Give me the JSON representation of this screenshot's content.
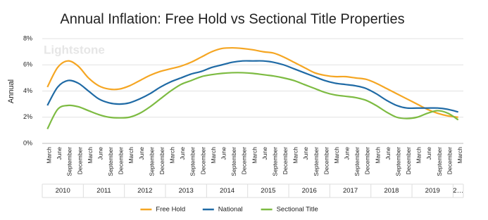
{
  "chart_data": {
    "type": "line",
    "title": "Annual Inflation: Free Hold vs Sectional Title Properties",
    "ylabel": "Annual",
    "watermark": "Lightstone",
    "categories": [
      "March",
      "June",
      "September",
      "December",
      "March",
      "June",
      "September",
      "December",
      "March",
      "June",
      "September",
      "December",
      "March",
      "June",
      "September",
      "December",
      "March",
      "June",
      "September",
      "December",
      "March",
      "June",
      "September",
      "December",
      "March",
      "June",
      "September",
      "December",
      "March",
      "June",
      "September",
      "December",
      "March",
      "June",
      "September",
      "December",
      "March",
      "June",
      "September",
      "December",
      "March"
    ],
    "x_groups": [
      "2010",
      "2011",
      "2012",
      "2013",
      "2014",
      "2015",
      "2016",
      "2017",
      "2018",
      "2019",
      "2…"
    ],
    "ylim": [
      0,
      8
    ],
    "yticks": [
      {
        "value": 0,
        "label": "0%"
      },
      {
        "value": 2,
        "label": "2%"
      },
      {
        "value": 4,
        "label": "4%"
      },
      {
        "value": 6,
        "label": "6%"
      },
      {
        "value": 8,
        "label": "8%"
      }
    ],
    "grid": true,
    "legend": "bottom",
    "series": [
      {
        "name": "Free Hold",
        "color": "#f5a623",
        "values": [
          4.3,
          5.8,
          6.3,
          5.9,
          5.0,
          4.4,
          4.15,
          4.15,
          4.4,
          4.8,
          5.2,
          5.5,
          5.7,
          5.9,
          6.2,
          6.6,
          7.0,
          7.25,
          7.3,
          7.25,
          7.15,
          7.0,
          6.9,
          6.6,
          6.2,
          5.8,
          5.4,
          5.2,
          5.1,
          5.1,
          5.0,
          4.9,
          4.6,
          4.2,
          3.8,
          3.4,
          3.0,
          2.6,
          2.3,
          2.1,
          2.0
        ]
      },
      {
        "name": "National",
        "color": "#1f6aa5",
        "values": [
          2.9,
          4.3,
          4.8,
          4.6,
          4.0,
          3.4,
          3.1,
          3.0,
          3.1,
          3.4,
          3.8,
          4.3,
          4.7,
          5.0,
          5.3,
          5.5,
          5.8,
          6.0,
          6.2,
          6.3,
          6.3,
          6.3,
          6.2,
          6.0,
          5.7,
          5.4,
          5.1,
          4.8,
          4.6,
          4.5,
          4.4,
          4.2,
          3.8,
          3.3,
          2.9,
          2.7,
          2.7,
          2.7,
          2.7,
          2.6,
          2.4
        ]
      },
      {
        "name": "Sectional Title",
        "color": "#7dbb42",
        "values": [
          1.1,
          2.6,
          2.9,
          2.8,
          2.5,
          2.2,
          2.0,
          1.95,
          2.0,
          2.3,
          2.8,
          3.4,
          4.0,
          4.5,
          4.8,
          5.1,
          5.25,
          5.35,
          5.4,
          5.4,
          5.35,
          5.25,
          5.15,
          5.0,
          4.8,
          4.5,
          4.2,
          3.9,
          3.7,
          3.6,
          3.5,
          3.3,
          2.9,
          2.4,
          2.0,
          1.9,
          2.0,
          2.3,
          2.5,
          2.3,
          1.8
        ]
      }
    ]
  }
}
